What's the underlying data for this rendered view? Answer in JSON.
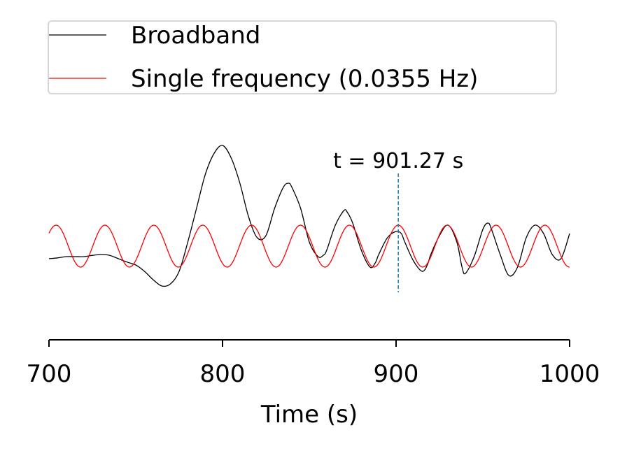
{
  "chart_data": {
    "type": "line",
    "xlabel": "Time (s)",
    "ylabel": "",
    "xlim": [
      700,
      1000
    ],
    "xticks": [
      700,
      800,
      900,
      1000
    ],
    "xtick_labels": [
      "700",
      "800",
      "900",
      "1000"
    ],
    "y_axis_visible": false,
    "grid": false,
    "legend_position": "top",
    "series": [
      {
        "name": "Broadband",
        "color": "#000000",
        "x": [
          700,
          705,
          710,
          715,
          720,
          725,
          730,
          735,
          740,
          745,
          750,
          755,
          760,
          765,
          770,
          775,
          780,
          785,
          790,
          795,
          800,
          805,
          810,
          815,
          820,
          825,
          830,
          835,
          838,
          840,
          845,
          850,
          855,
          858,
          860,
          865,
          870,
          872,
          875,
          880,
          885,
          888,
          890,
          895,
          900,
          903,
          905,
          910,
          915,
          918,
          920,
          925,
          930,
          935,
          938,
          940,
          945,
          950,
          953,
          955,
          960,
          965,
          970,
          975,
          980,
          985,
          990,
          995,
          1000
        ],
        "values": [
          -0.3,
          -0.28,
          -0.25,
          -0.25,
          -0.25,
          -0.22,
          -0.2,
          -0.22,
          -0.3,
          -0.38,
          -0.45,
          -0.6,
          -0.8,
          -0.95,
          -0.9,
          -0.6,
          0.1,
          0.9,
          1.7,
          2.2,
          2.4,
          2.1,
          1.5,
          0.7,
          0.2,
          0.25,
          0.9,
          1.4,
          1.5,
          1.4,
          0.9,
          0.1,
          -0.25,
          -0.22,
          -0.1,
          0.5,
          0.85,
          0.8,
          0.55,
          -0.1,
          -0.5,
          -0.4,
          -0.2,
          0.2,
          0.35,
          0.3,
          0.1,
          -0.35,
          -0.6,
          -0.45,
          -0.2,
          0.25,
          0.5,
          0.1,
          -0.5,
          -0.65,
          -0.25,
          0.4,
          0.55,
          0.4,
          -0.2,
          -0.7,
          -0.5,
          0.2,
          0.5,
          0.3,
          -0.2,
          -0.3,
          0.3
        ]
      },
      {
        "name": "Single frequency (0.0355 Hz)",
        "color": "#ff0000",
        "frequency_hz": 0.0355,
        "amplitude": 0.5,
        "phase_reference_time": 901.27,
        "x_start": 700,
        "x_end": 1000
      }
    ],
    "annotations": [
      {
        "text": "t = 901.27 s",
        "x": 901.27,
        "style": "dashed vertical line",
        "color": "#1f77b4"
      }
    ]
  }
}
